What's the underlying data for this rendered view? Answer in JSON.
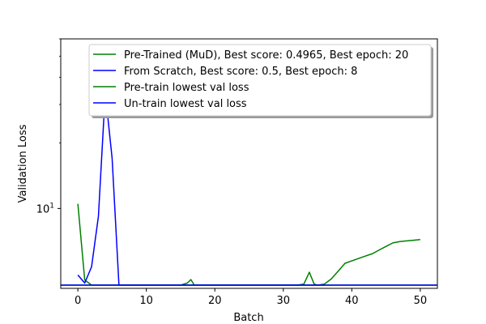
{
  "chart_data": {
    "type": "line",
    "title": "",
    "xlabel": "Batch",
    "ylabel": "Validation Loss",
    "yscale": "log",
    "xlim": [
      -2.5,
      52.5
    ],
    "ylim": [
      4.3,
      60
    ],
    "x_ticks": [
      0,
      10,
      20,
      30,
      40,
      50
    ],
    "y_ticks": [
      {
        "value": 10,
        "label": "10",
        "sup": "1"
      }
    ],
    "y_minor_ticks": [
      20,
      30,
      40,
      50,
      60
    ],
    "grid": false,
    "legend_position": "top-right",
    "series": [
      {
        "name": "Pre-Trained (MuD), Best score: 0.4965, Best epoch: 20",
        "color": "#008000",
        "style": "line",
        "x": [
          0,
          1,
          2,
          3,
          4,
          5,
          6,
          7,
          8,
          9,
          10,
          11,
          12,
          13,
          14,
          15,
          16,
          16.5,
          17,
          18,
          19,
          20,
          21,
          22,
          23,
          24,
          25,
          26,
          27,
          28,
          29,
          30,
          31,
          32,
          33,
          33.8,
          34.5,
          35,
          36,
          37,
          38,
          39,
          40,
          41,
          42,
          43,
          44,
          45,
          46,
          47,
          48,
          49,
          50
        ],
        "y": [
          10.5,
          4.7,
          4.45,
          4.45,
          4.45,
          4.45,
          4.45,
          4.45,
          4.45,
          4.45,
          4.45,
          4.45,
          4.45,
          4.45,
          4.45,
          4.45,
          4.55,
          4.72,
          4.45,
          4.45,
          4.45,
          4.45,
          4.45,
          4.45,
          4.45,
          4.45,
          4.45,
          4.45,
          4.45,
          4.45,
          4.45,
          4.45,
          4.45,
          4.45,
          4.5,
          5.1,
          4.5,
          4.45,
          4.5,
          4.75,
          5.15,
          5.6,
          5.75,
          5.9,
          6.05,
          6.2,
          6.45,
          6.7,
          6.95,
          7.05,
          7.1,
          7.15,
          7.2
        ]
      },
      {
        "name": "From Scratch, Best score: 0.5, Best epoch: 8",
        "color": "#0000ff",
        "style": "line",
        "x": [
          0,
          1,
          2,
          3,
          4,
          5,
          6,
          7,
          8,
          9,
          10,
          11,
          12,
          13,
          14,
          15,
          16,
          17,
          18,
          19,
          20,
          21,
          22,
          23,
          24,
          25,
          26,
          27,
          28,
          29,
          30,
          31,
          32,
          33,
          34,
          35,
          36
        ],
        "y": [
          4.95,
          4.55,
          5.4,
          9.2,
          34,
          17,
          4.45,
          4.45,
          4.45,
          4.45,
          4.45,
          4.45,
          4.45,
          4.45,
          4.45,
          4.45,
          4.45,
          4.45,
          4.45,
          4.45,
          4.45,
          4.45,
          4.45,
          4.45,
          4.45,
          4.45,
          4.45,
          4.45,
          4.45,
          4.45,
          4.45,
          4.45,
          4.45,
          4.45,
          4.45,
          4.45,
          4.45
        ]
      },
      {
        "name": "Pre-train lowest val loss",
        "color": "#008000",
        "style": "hline",
        "y": 4.45
      },
      {
        "name": "Un-train lowest val loss",
        "color": "#0000ff",
        "style": "hline",
        "y": 4.45
      }
    ]
  }
}
